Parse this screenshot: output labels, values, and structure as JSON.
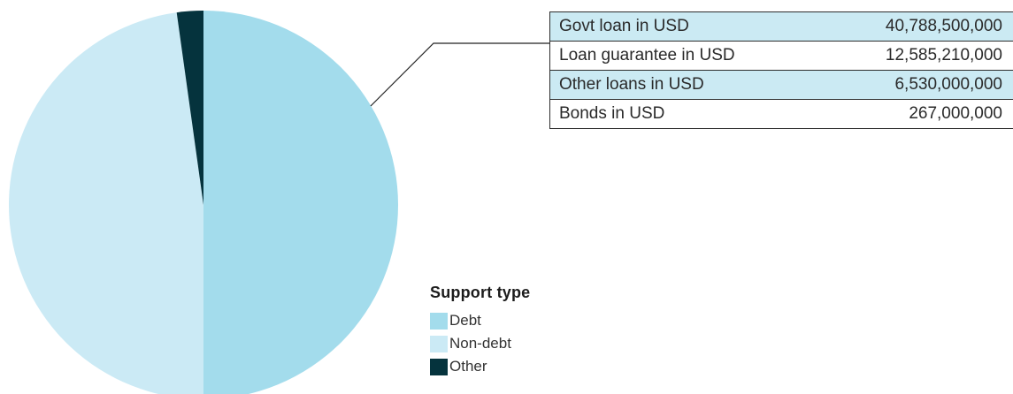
{
  "chart_data": {
    "type": "pie",
    "legend_title": "Support type",
    "legend_position": "bottom-right",
    "slices": [
      {
        "label": "Debt",
        "value": 50.0,
        "color": "#a3dcec"
      },
      {
        "label": "Non-debt",
        "value": 47.8,
        "color": "#cbeaf5"
      },
      {
        "label": "Other",
        "value": 2.2,
        "color": "#05333d"
      }
    ],
    "callout_table": {
      "rows": [
        {
          "label": "Govt loan in USD",
          "value": "40,788,500,000",
          "shaded": true
        },
        {
          "label": "Loan guarantee in USD",
          "value": "12,585,210,000",
          "shaded": false
        },
        {
          "label": "Other loans in USD",
          "value": "6,530,000,000",
          "shaded": true
        },
        {
          "label": "Bonds in USD",
          "value": "267,000,000",
          "shaded": false
        }
      ]
    }
  }
}
